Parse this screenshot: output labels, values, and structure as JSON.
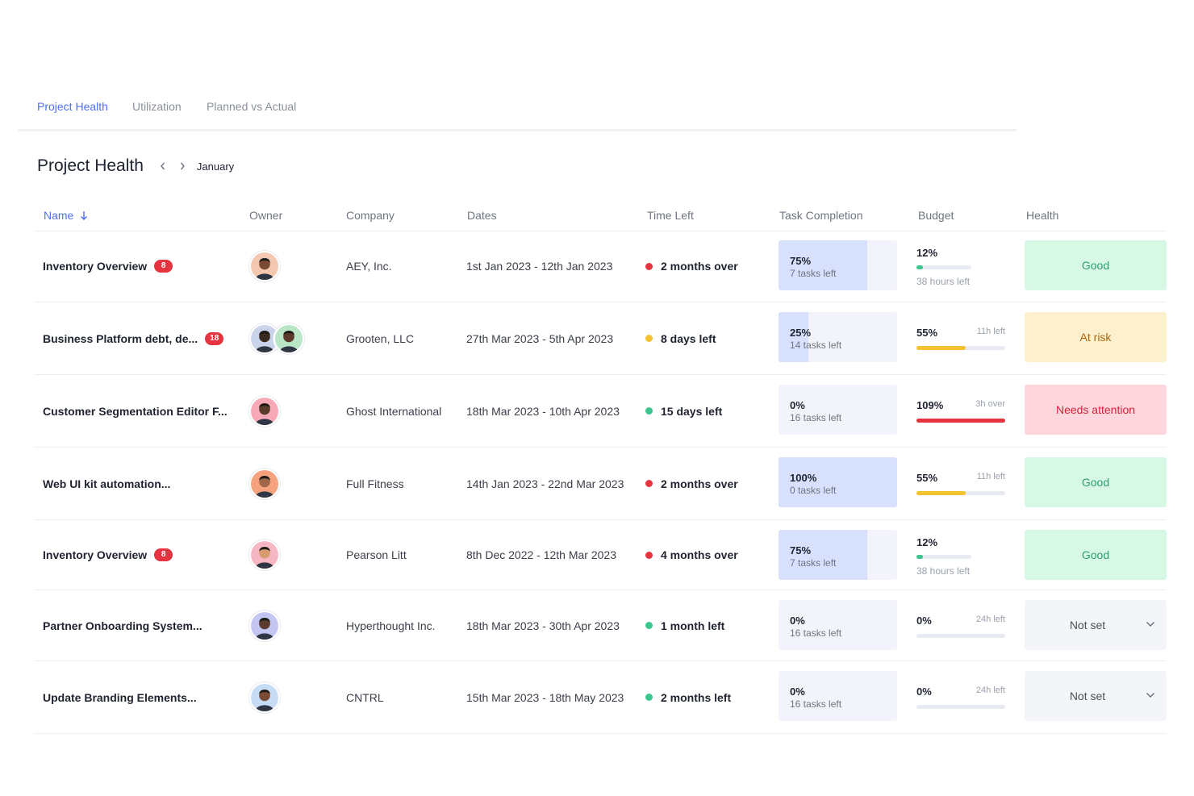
{
  "tabs": [
    {
      "label": "Project Health",
      "active": true
    },
    {
      "label": "Utilization",
      "active": false
    },
    {
      "label": "Planned vs Actual",
      "active": false
    }
  ],
  "header": {
    "title": "Project Health",
    "month": "January",
    "prev_icon": "chevron-left-icon",
    "next_icon": "chevron-right-icon"
  },
  "columns": {
    "name": "Name",
    "owner": "Owner",
    "company": "Company",
    "dates": "Dates",
    "time_left": "Time Left",
    "task_completion": "Task Completion",
    "budget": "Budget",
    "health": "Health",
    "sort_icon": "arrow-down-icon"
  },
  "colors": {
    "accent": "#4f6ef7",
    "over": "#e5333f",
    "warn": "#f5c12e",
    "ok": "#3cc58e",
    "good_bg": "#d8f8e6",
    "good_text": "#2f9e6a",
    "risk_bg": "#fdf0cd",
    "risk_text": "#b0650d",
    "attention_bg": "#fdd6de",
    "attention_text": "#d0243a"
  },
  "rows": [
    {
      "name": "Inventory Overview",
      "badge": "8",
      "avatars": [
        "#f3c7b0"
      ],
      "company": "AEY, Inc.",
      "dates": "1st Jan 2023 - 12th Jan 2023",
      "time_status": "over",
      "time_left": "2 months over",
      "task_pct": "75%",
      "task_fill": 0.75,
      "task_sub": "7 tasks left",
      "budget_pct": "12%",
      "budget_fill": 0.12,
      "budget_note": "",
      "budget_sub": "38 hours left",
      "budget_color": "ok",
      "health": "Good",
      "health_kind": "good"
    },
    {
      "name": "Business Platform debt, de...",
      "badge": "18",
      "avatars": [
        "#c9d4ea",
        "#b9e6c6"
      ],
      "company": "Grooten, LLC",
      "dates": "27th Mar 2023 - 5th Apr 2023",
      "time_status": "warn",
      "time_left": "8 days left",
      "task_pct": "25%",
      "task_fill": 0.25,
      "task_sub": "14 tasks left",
      "budget_pct": "55%",
      "budget_fill": 0.55,
      "budget_note": "11h left",
      "budget_sub": "",
      "budget_color": "warn",
      "health": "At risk",
      "health_kind": "risk"
    },
    {
      "name": "Customer Segmentation Editor F...",
      "badge": "",
      "avatars": [
        "#f7a9b8"
      ],
      "company": "Ghost International",
      "dates": "18th Mar 2023 - 10th Apr 2023",
      "time_status": "ok",
      "time_left": "15 days left",
      "task_pct": "0%",
      "task_fill": 0,
      "task_sub": "16 tasks left",
      "budget_pct": "109%",
      "budget_fill": 1,
      "budget_note": "3h over",
      "budget_sub": "",
      "budget_color": "over",
      "health": "Needs attention",
      "health_kind": "attention"
    },
    {
      "name": "Web UI kit automation...",
      "badge": "",
      "avatars": [
        "#f6a37d"
      ],
      "company": "Full Fitness",
      "dates": "14th Jan 2023 - 22nd Mar 2023",
      "time_status": "over",
      "time_left": "2 months over",
      "task_pct": "100%",
      "task_fill": 1,
      "task_sub": "0 tasks left",
      "budget_pct": "55%",
      "budget_fill": 0.55,
      "budget_note": "11h left",
      "budget_sub": "",
      "budget_color": "warn",
      "health": "Good",
      "health_kind": "good"
    },
    {
      "name": "Inventory Overview",
      "badge": "8",
      "avatars": [
        "#f6b6c2"
      ],
      "company": "Pearson Litt",
      "dates": "8th Dec 2022 - 12th Mar 2023",
      "time_status": "over",
      "time_left": "4 months over",
      "task_pct": "75%",
      "task_fill": 0.75,
      "task_sub": "7 tasks left",
      "budget_pct": "12%",
      "budget_fill": 0.12,
      "budget_note": "",
      "budget_sub": "38 hours left",
      "budget_color": "ok",
      "health": "Good",
      "health_kind": "good"
    },
    {
      "name": "Partner Onboarding System...",
      "badge": "",
      "avatars": [
        "#c3c6f3"
      ],
      "company": "Hyperthought Inc.",
      "dates": "18th Mar 2023 - 30th Apr 2023",
      "time_status": "ok",
      "time_left": "1 month left",
      "task_pct": "0%",
      "task_fill": 0,
      "task_sub": "16 tasks left",
      "budget_pct": "0%",
      "budget_fill": 0,
      "budget_note": "24h left",
      "budget_sub": "",
      "budget_color": "ok",
      "health": "Not set",
      "health_kind": "select"
    },
    {
      "name": "Update Branding Elements...",
      "badge": "",
      "avatars": [
        "#c6dcf5"
      ],
      "company": "CNTRL",
      "dates": "15th Mar 2023 - 18th May 2023",
      "time_status": "ok",
      "time_left": "2 months left",
      "task_pct": "0%",
      "task_fill": 0,
      "task_sub": "16 tasks left",
      "budget_pct": "0%",
      "budget_fill": 0,
      "budget_note": "24h left",
      "budget_sub": "",
      "budget_color": "ok",
      "health": "Not set",
      "health_kind": "select"
    }
  ]
}
